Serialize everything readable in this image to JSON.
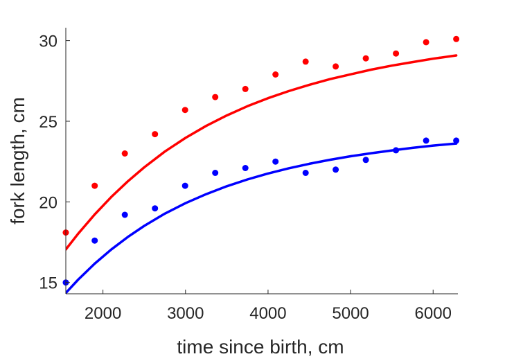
{
  "chart_data": {
    "type": "scatter",
    "title": "",
    "xlabel": "time since birth, cm",
    "ylabel": "fork length, cm",
    "xlim": [
      1550,
      6300
    ],
    "ylim": [
      14.3,
      30.8
    ],
    "xticks": [
      2000,
      3000,
      4000,
      5000,
      6000
    ],
    "xtick_labels": [
      "2000",
      "3000",
      "4000",
      "5000",
      "6000"
    ],
    "yticks": [
      15,
      20,
      25,
      30
    ],
    "ytick_labels": [
      "15",
      "20",
      "25",
      "30"
    ],
    "grid": false,
    "legend": "none",
    "series": [
      {
        "color": "#ff0000",
        "points": {
          "x": [
            1550,
            1900,
            2265,
            2630,
            2995,
            3360,
            3725,
            4090,
            4455,
            4820,
            5185,
            5550,
            5915,
            6280
          ],
          "y": [
            18.1,
            21.0,
            23.0,
            24.2,
            25.7,
            26.5,
            27.0,
            27.9,
            28.7,
            28.4,
            28.9,
            29.2,
            29.9,
            30.1
          ]
        },
        "fit": {
          "x": [
            1550,
            1700,
            1900,
            2100,
            2300,
            2500,
            2750,
            3000,
            3250,
            3500,
            3750,
            4000,
            4250,
            4500,
            4750,
            5000,
            5250,
            5500,
            5750,
            6000,
            6280
          ],
          "y": [
            17.05,
            18.03,
            19.22,
            20.3,
            21.27,
            22.14,
            23.12,
            23.97,
            24.71,
            25.36,
            25.93,
            26.43,
            26.87,
            27.26,
            27.61,
            27.91,
            28.2,
            28.45,
            28.67,
            28.88,
            29.08
          ]
        }
      },
      {
        "color": "#0000ff",
        "points": {
          "x": [
            1550,
            1900,
            2265,
            2630,
            2995,
            3360,
            3725,
            4090,
            4455,
            4820,
            5185,
            5550,
            5915,
            6280
          ],
          "y": [
            15.0,
            17.6,
            19.2,
            19.6,
            21.0,
            21.8,
            22.1,
            22.5,
            21.8,
            22.0,
            22.6,
            23.2,
            23.8,
            23.8
          ]
        },
        "fit": {
          "x": [
            1550,
            1700,
            1900,
            2100,
            2300,
            2500,
            2750,
            3000,
            3250,
            3500,
            3750,
            4000,
            4250,
            4500,
            4750,
            5000,
            5250,
            5500,
            5750,
            6000,
            6280
          ],
          "y": [
            14.35,
            15.18,
            16.17,
            17.04,
            17.82,
            18.51,
            19.27,
            19.92,
            20.48,
            20.97,
            21.39,
            21.76,
            22.08,
            22.36,
            22.61,
            22.83,
            23.02,
            23.19,
            23.35,
            23.49,
            23.62
          ]
        }
      }
    ]
  }
}
